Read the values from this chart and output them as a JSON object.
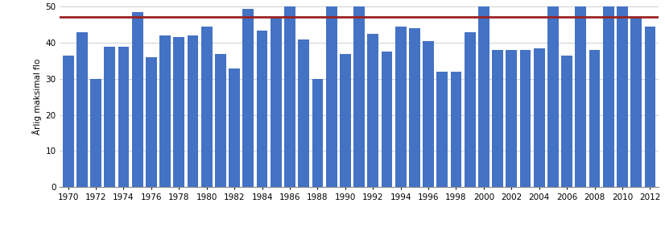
{
  "years": [
    1970,
    1971,
    1972,
    1973,
    1974,
    1975,
    1976,
    1977,
    1978,
    1979,
    1980,
    1981,
    1982,
    1983,
    1984,
    1985,
    1986,
    1987,
    1988,
    1989,
    1990,
    1991,
    1992,
    1993,
    1994,
    1995,
    1996,
    1997,
    1998,
    1999,
    2000,
    2001,
    2002,
    2003,
    2004,
    2005,
    2006,
    2007,
    2008,
    2009,
    2010,
    2011,
    2012
  ],
  "values": [
    36.5,
    43.0,
    30.0,
    39.0,
    39.0,
    48.5,
    36.0,
    42.0,
    41.5,
    42.0,
    44.5,
    37.0,
    33.0,
    49.5,
    43.5,
    47.0,
    50.0,
    41.0,
    30.0,
    50.0,
    37.0,
    50.0,
    42.5,
    37.5,
    44.5,
    44.0,
    40.5,
    32.0,
    32.0,
    43.0,
    50.0,
    38.0,
    38.0,
    38.0,
    38.5,
    50.0,
    36.5,
    50.0,
    38.0,
    50.0,
    50.0,
    47.0,
    44.5
  ],
  "bar_color": "#4472C4",
  "hline_value": 47.3,
  "hline_color": "#9B2222",
  "ylabel": "Årlig maksimal flo",
  "ylim": [
    0,
    50
  ],
  "yticks": [
    0,
    10,
    20,
    30,
    40,
    50
  ],
  "xtick_years": [
    1970,
    1972,
    1974,
    1976,
    1978,
    1980,
    1982,
    1984,
    1986,
    1988,
    1990,
    1992,
    1994,
    1996,
    1998,
    2000,
    2002,
    2004,
    2006,
    2008,
    2010,
    2012
  ],
  "background_color": "#ffffff",
  "grid_color": "#c8c8c8",
  "bar_width": 0.8,
  "tick_fontsize": 7.5,
  "ylabel_fontsize": 7.5
}
